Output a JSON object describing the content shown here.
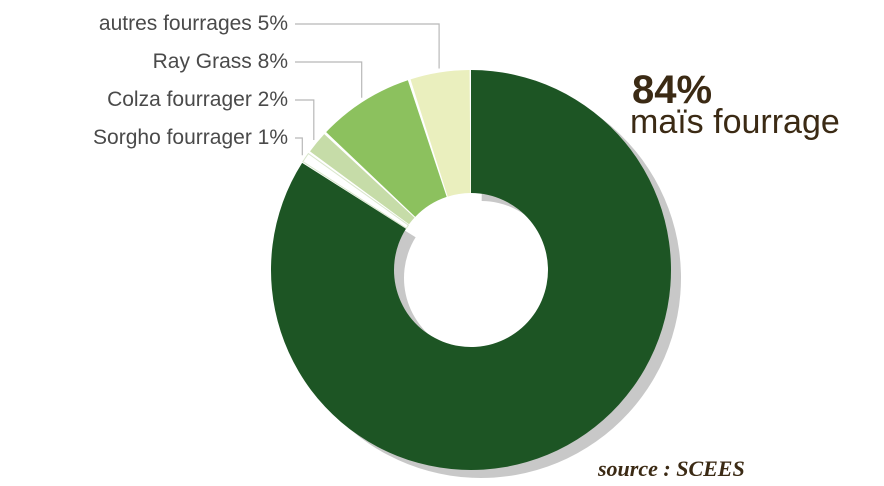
{
  "chart_data": {
    "type": "pie",
    "variant": "donut",
    "slices": [
      {
        "label": "maïs fourrage",
        "value": 84,
        "display": "84%",
        "color": "#1d5524"
      },
      {
        "label": "Sorgho fourrager",
        "value": 1,
        "display": "Sorgho fourrager 1%",
        "color": "#ffffff"
      },
      {
        "label": "Colza fourrager",
        "value": 2,
        "display": "Colza fourrager 2%",
        "color": "#c6dca8"
      },
      {
        "label": "Ray Grass",
        "value": 8,
        "display": "Ray Grass 8%",
        "color": "#8cc15e"
      },
      {
        "label": "autres fourrages",
        "value": 5,
        "display": "autres fourrages 5%",
        "color": "#eaefbe"
      }
    ],
    "main_pct": "84%",
    "main_name": "maïs fourrage",
    "source": "source : SCEES"
  }
}
